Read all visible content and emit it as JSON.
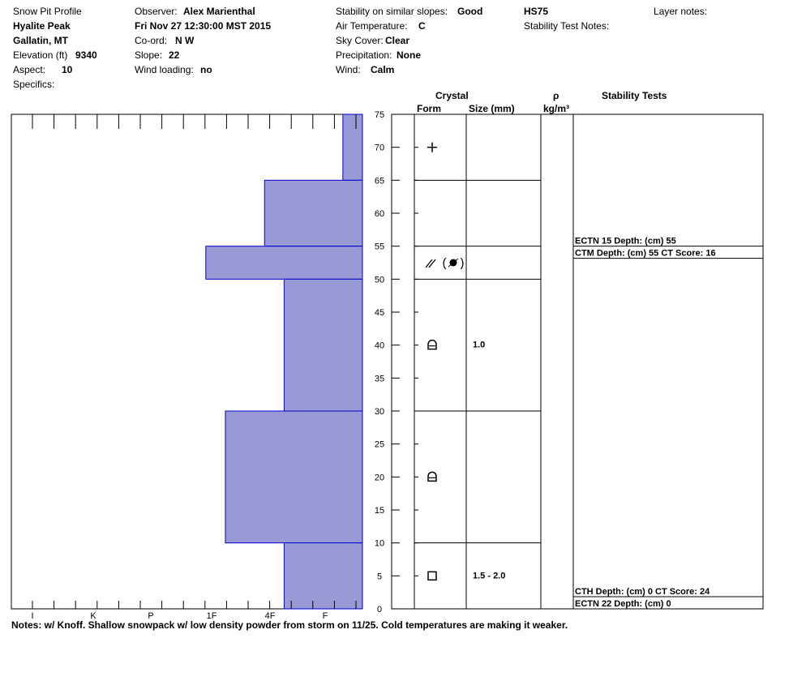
{
  "header": {
    "title": "Snow Pit Profile",
    "location": "Hyalite Peak",
    "region": "Gallatin, MT",
    "elevation_label": "Elevation (ft)",
    "elevation_value": "9340",
    "aspect_label": "Aspect:",
    "aspect_value": "10",
    "specifics_label": "Specifics:",
    "observer_label": "Observer:",
    "observer_value": "Alex Marienthal",
    "datetime": "Fri Nov 27 12:30:00 MST 2015",
    "coord_label": "Co-ord:",
    "coord_value": "N  W",
    "slope_label": "Slope:",
    "slope_value": "22",
    "wind_loading_label": "Wind loading:",
    "wind_loading_value": "no",
    "stability_label": "Stability on similar slopes:",
    "stability_value": "Good",
    "air_temp_label": "Air Temperature:",
    "air_temp_value": "C",
    "sky_label": "Sky Cover:",
    "sky_value": "Clear",
    "precip_label": "Precipitation:",
    "precip_value": "None",
    "wind_label": "Wind:",
    "wind_value": "Calm",
    "hs": "HS75",
    "stability_notes_label": "Stability Test Notes:",
    "layer_notes_label": "Layer notes:"
  },
  "columns": {
    "crystal": "Crystal",
    "form": "Form",
    "size": "Size (mm)",
    "rho": "ρ",
    "density_unit": "kg/m³",
    "stability_tests": "Stability Tests"
  },
  "notes": "Notes:  w/ Knoff. Shallow snowpack w/ low density powder from storm on 11/25. Cold temperatures are making it weaker.",
  "colors": {
    "hardness_fill": "#9999d6",
    "hardness_stroke": "#0000cc"
  },
  "chart_data": {
    "type": "bar",
    "orientation": "horizontal",
    "y_range": [
      0,
      75
    ],
    "y_ticks": [
      0,
      5,
      10,
      15,
      20,
      25,
      30,
      35,
      40,
      45,
      50,
      55,
      60,
      65,
      70,
      75
    ],
    "hardness_scale": [
      "I",
      "K",
      "P",
      "1F",
      "4F",
      "F"
    ],
    "layers": [
      {
        "top": 75,
        "bottom": 65,
        "hardness": 0.3,
        "form_icon": "plus-icon",
        "size": ""
      },
      {
        "top": 65,
        "bottom": 55,
        "hardness": 1.5,
        "form_icon": "",
        "size": ""
      },
      {
        "top": 55,
        "bottom": 50,
        "hardness": 2.4,
        "form_icon": "surface-hoar-icon",
        "size": ""
      },
      {
        "top": 50,
        "bottom": 30,
        "hardness": 1.2,
        "form_icon": "depth-hoar-icon",
        "size": "1.0"
      },
      {
        "top": 30,
        "bottom": 10,
        "hardness": 2.1,
        "form_icon": "depth-hoar-icon",
        "size": ""
      },
      {
        "top": 10,
        "bottom": 0,
        "hardness": 1.2,
        "form_icon": "faceted-icon",
        "size": "1.5 - 2.0"
      }
    ],
    "stability_tests": [
      {
        "depth": 55,
        "text": "ECTN 15   Depth: (cm) 55"
      },
      {
        "depth": 55,
        "text": "CTM   Depth: (cm) 55 CT Score: 16"
      },
      {
        "depth": 0,
        "text": "CTH   Depth: (cm) 0 CT Score: 24"
      },
      {
        "depth": 0,
        "text": "ECTN 22   Depth: (cm) 0"
      }
    ]
  }
}
